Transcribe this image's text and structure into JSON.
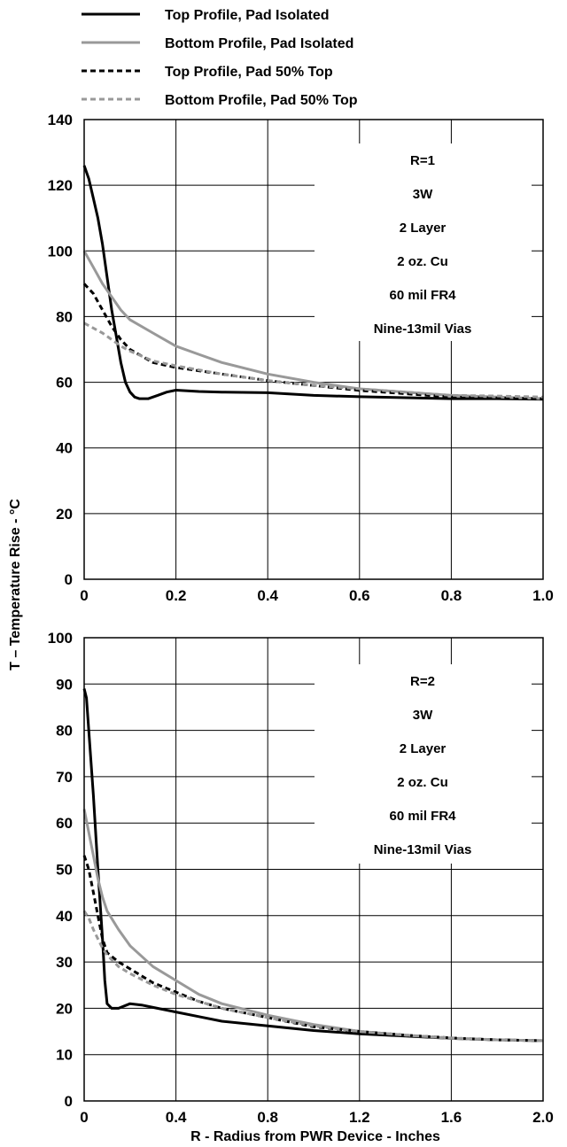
{
  "legend": [
    {
      "label": "Top Profile, Pad Isolated",
      "color": "#000000",
      "dash": "solid"
    },
    {
      "label": "Bottom Profile, Pad Isolated",
      "color": "#999999",
      "dash": "solid"
    },
    {
      "label": "Top Profile, Pad 50% Top",
      "color": "#000000",
      "dash": "dashed"
    },
    {
      "label": "Bottom Profile, Pad 50% Top",
      "color": "#999999",
      "dash": "dashed"
    }
  ],
  "ylabel": "T – Temperature Rise - °C",
  "xlabel": "R - Radius from PWR Device - Inches",
  "chart_data": [
    {
      "type": "line",
      "xlim": [
        0,
        1.0
      ],
      "ylim": [
        0,
        140
      ],
      "x_ticks": [
        "0",
        "0.2",
        "0.4",
        "0.6",
        "0.8",
        "1.0"
      ],
      "y_ticks": [
        "0",
        "20",
        "40",
        "60",
        "80",
        "100",
        "120",
        "140"
      ],
      "grid": true,
      "annotations": [
        "R=1",
        "3W",
        "2 Layer",
        "2 oz. Cu",
        "60 mil FR4",
        "Nine-13mil Vias"
      ],
      "series": [
        {
          "name": "Top Profile, Pad Isolated",
          "color": "#000000",
          "dash": "solid",
          "x": [
            0,
            0.01,
            0.02,
            0.03,
            0.04,
            0.05,
            0.06,
            0.07,
            0.08,
            0.09,
            0.1,
            0.11,
            0.12,
            0.14,
            0.16,
            0.18,
            0.2,
            0.25,
            0.3,
            0.4,
            0.5,
            0.6,
            0.7,
            0.8,
            0.9,
            1.0
          ],
          "y": [
            126,
            122,
            116,
            110,
            102,
            92,
            82,
            74,
            66,
            60,
            57,
            55.5,
            55,
            55,
            56,
            57,
            57.6,
            57.2,
            57,
            56.8,
            56,
            55.6,
            55.3,
            55,
            55,
            54.8
          ]
        },
        {
          "name": "Bottom Profile, Pad Isolated",
          "color": "#999999",
          "dash": "solid",
          "x": [
            0,
            0.02,
            0.04,
            0.06,
            0.08,
            0.1,
            0.15,
            0.2,
            0.25,
            0.3,
            0.4,
            0.5,
            0.6,
            0.7,
            0.8,
            0.9,
            1.0
          ],
          "y": [
            100,
            95,
            90,
            86,
            82,
            79,
            75,
            71,
            68.5,
            66,
            62.5,
            60,
            58,
            57,
            56,
            55.5,
            55
          ]
        },
        {
          "name": "Top Profile, Pad 50% Top",
          "color": "#000000",
          "dash": "dashed",
          "x": [
            0,
            0.02,
            0.04,
            0.06,
            0.08,
            0.1,
            0.15,
            0.2,
            0.3,
            0.4,
            0.5,
            0.6,
            0.7,
            0.8,
            0.9,
            1.0
          ],
          "y": [
            90,
            87,
            82,
            77,
            73,
            70,
            66,
            64.5,
            62.5,
            60.5,
            59,
            57.5,
            56.5,
            55.5,
            55.2,
            55
          ]
        },
        {
          "name": "Bottom Profile, Pad 50% Top",
          "color": "#999999",
          "dash": "dashed",
          "x": [
            0,
            0.02,
            0.04,
            0.06,
            0.08,
            0.1,
            0.15,
            0.2,
            0.3,
            0.4,
            0.5,
            0.6,
            0.7,
            0.8,
            0.9,
            1.0
          ],
          "y": [
            78,
            76.5,
            75,
            73,
            71,
            69.5,
            66.5,
            65,
            62.5,
            60.5,
            59,
            58,
            57,
            56,
            55.8,
            55.5
          ]
        }
      ]
    },
    {
      "type": "line",
      "xlim": [
        0,
        2.0
      ],
      "ylim": [
        0,
        100
      ],
      "x_ticks": [
        "0",
        "0.4",
        "0.8",
        "1.2",
        "1.6",
        "2.0"
      ],
      "y_ticks": [
        "0",
        "10",
        "20",
        "30",
        "40",
        "50",
        "60",
        "70",
        "80",
        "90",
        "100"
      ],
      "grid": true,
      "annotations": [
        "R=2",
        "3W",
        "2 Layer",
        "2 oz. Cu",
        "60 mil FR4",
        "Nine-13mil Vias"
      ],
      "series": [
        {
          "name": "Top Profile, Pad Isolated",
          "color": "#000000",
          "dash": "solid",
          "x": [
            0,
            0.01,
            0.02,
            0.04,
            0.06,
            0.08,
            0.09,
            0.1,
            0.12,
            0.15,
            0.2,
            0.25,
            0.3,
            0.4,
            0.5,
            0.6,
            0.8,
            1.0,
            1.2,
            1.4,
            1.6,
            1.8,
            2.0
          ],
          "y": [
            89,
            87,
            80,
            66,
            50,
            35,
            26,
            21,
            20,
            20,
            21,
            20.7,
            20.2,
            19.2,
            18.2,
            17.2,
            16.2,
            15.2,
            14.5,
            14,
            13.5,
            13.2,
            13
          ]
        },
        {
          "name": "Bottom Profile, Pad Isolated",
          "color": "#999999",
          "dash": "solid",
          "x": [
            0,
            0.02,
            0.04,
            0.06,
            0.08,
            0.1,
            0.15,
            0.2,
            0.3,
            0.4,
            0.5,
            0.6,
            0.8,
            1.0,
            1.2,
            1.4,
            1.6,
            1.8,
            2.0
          ],
          "y": [
            63,
            58,
            53,
            48,
            44,
            41,
            37,
            33.5,
            29,
            26,
            23,
            21,
            18.5,
            16.5,
            15,
            14.2,
            13.5,
            13.2,
            13
          ]
        },
        {
          "name": "Top Profile, Pad 50% Top",
          "color": "#000000",
          "dash": "dashed",
          "x": [
            0,
            0.02,
            0.04,
            0.06,
            0.08,
            0.1,
            0.15,
            0.2,
            0.3,
            0.4,
            0.5,
            0.6,
            0.8,
            1.0,
            1.2,
            1.4,
            1.6,
            1.8,
            2.0
          ],
          "y": [
            53,
            50,
            45,
            40,
            35,
            32,
            30,
            28.5,
            25.5,
            23.5,
            21.5,
            20,
            18,
            16,
            15,
            14.2,
            13.6,
            13.2,
            13
          ]
        },
        {
          "name": "Bottom Profile, Pad 50% Top",
          "color": "#999999",
          "dash": "dashed",
          "x": [
            0,
            0.02,
            0.04,
            0.06,
            0.08,
            0.1,
            0.15,
            0.2,
            0.3,
            0.4,
            0.5,
            0.6,
            0.8,
            1.0,
            1.2,
            1.4,
            1.6,
            1.8,
            2.0
          ],
          "y": [
            41,
            39.5,
            37,
            35,
            33,
            31.5,
            29,
            27.5,
            25,
            23,
            21.5,
            20,
            18,
            16.2,
            15,
            14.2,
            13.6,
            13.2,
            13
          ]
        }
      ]
    }
  ]
}
